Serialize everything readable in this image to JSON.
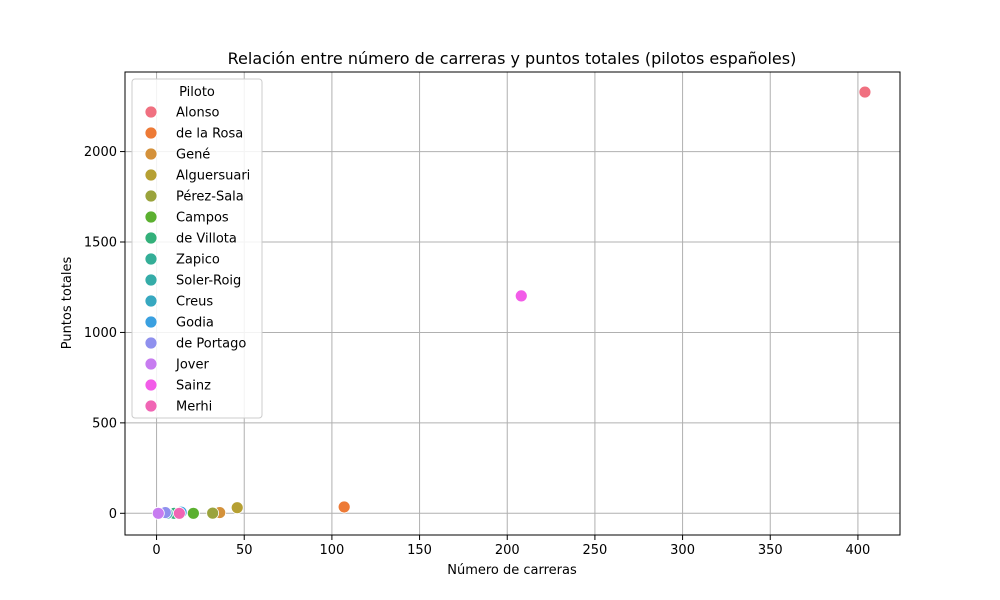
{
  "chart_data": {
    "type": "scatter",
    "title": "Relación entre número de carreras y puntos totales (pilotos españoles)",
    "xlabel": "Número de carreras",
    "ylabel": "Puntos totales",
    "xlim": [
      -18,
      424
    ],
    "ylim": [
      -120,
      2440
    ],
    "xticks": [
      0,
      50,
      100,
      150,
      200,
      250,
      300,
      350,
      400
    ],
    "yticks": [
      0,
      500,
      1000,
      1500,
      2000
    ],
    "grid": true,
    "legend": {
      "title": "Piloto",
      "placement": "top-left"
    },
    "series": [
      {
        "name": "Alonso",
        "color": "#f07080",
        "points": [
          [
            404,
            2329
          ]
        ]
      },
      {
        "name": "de la Rosa",
        "color": "#ed7a36",
        "points": [
          [
            107,
            35
          ]
        ]
      },
      {
        "name": "Gené",
        "color": "#d4913a",
        "points": [
          [
            36,
            4
          ]
        ]
      },
      {
        "name": "Alguersuari",
        "color": "#b6a033",
        "points": [
          [
            46,
            31
          ]
        ]
      },
      {
        "name": "Pérez-Sala",
        "color": "#9aa33c",
        "points": [
          [
            32,
            1
          ]
        ]
      },
      {
        "name": "Campos",
        "color": "#5bb030",
        "points": [
          [
            21,
            0
          ]
        ]
      },
      {
        "name": "de Villota",
        "color": "#33b07a",
        "points": [
          [
            10,
            0
          ]
        ]
      },
      {
        "name": "Zapico",
        "color": "#34ae97",
        "points": [
          [
            2,
            0
          ]
        ]
      },
      {
        "name": "Soler-Roig",
        "color": "#35aca8",
        "points": [
          [
            6,
            0
          ]
        ]
      },
      {
        "name": "Creus",
        "color": "#37a8c0",
        "points": [
          [
            1,
            0
          ]
        ]
      },
      {
        "name": "Godia",
        "color": "#3aa0e0",
        "points": [
          [
            14,
            6
          ]
        ]
      },
      {
        "name": "de Portago",
        "color": "#8f90ee",
        "points": [
          [
            5,
            4
          ]
        ]
      },
      {
        "name": "Jover",
        "color": "#c77cf0",
        "points": [
          [
            1,
            0
          ]
        ]
      },
      {
        "name": "Sainz",
        "color": "#f25ce8",
        "points": [
          [
            208,
            1202
          ]
        ]
      },
      {
        "name": "Merhi",
        "color": "#f065b4",
        "points": [
          [
            13,
            0
          ]
        ]
      }
    ]
  }
}
